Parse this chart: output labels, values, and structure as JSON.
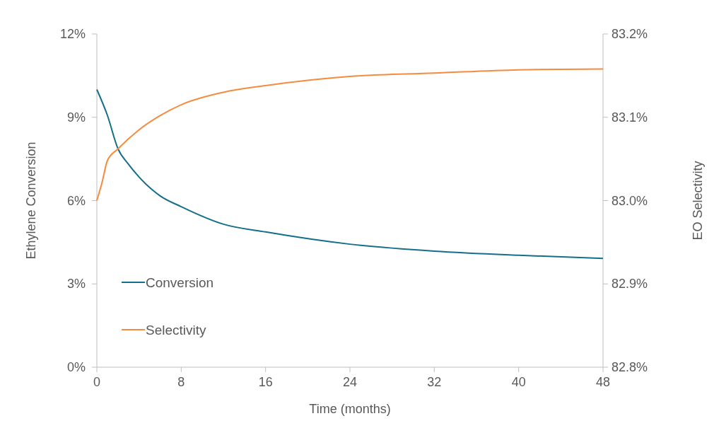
{
  "chart_data": {
    "type": "line",
    "xlabel": "Time  (months)",
    "ylabel": "Ethylene Conversion",
    "y2label": "EO Selectivity",
    "xlim": [
      0,
      48
    ],
    "xticks": [
      0,
      8,
      16,
      24,
      32,
      40,
      48
    ],
    "ylim": [
      0,
      12
    ],
    "yticks": [
      {
        "value": 0,
        "label": "0%"
      },
      {
        "value": 3,
        "label": "3%"
      },
      {
        "value": 6,
        "label": "6%"
      },
      {
        "value": 9,
        "label": "9%"
      },
      {
        "value": 12,
        "label": "12%"
      }
    ],
    "y2lim": [
      82.8,
      83.2
    ],
    "y2ticks": [
      {
        "value": 82.8,
        "label": "82.8%"
      },
      {
        "value": 82.9,
        "label": "82.9%"
      },
      {
        "value": 83.0,
        "label": "83.0%"
      },
      {
        "value": 83.1,
        "label": "83.1%"
      },
      {
        "value": 83.2,
        "label": "83.2%"
      }
    ],
    "legend": "bottom left",
    "grid": false,
    "marker": "none",
    "line_style": "solid",
    "series": [
      {
        "name": "Conversion",
        "color": "#146f8a",
        "x": [
          0,
          1,
          2,
          3,
          4,
          6,
          8,
          12,
          16,
          24,
          32,
          40,
          48
        ],
        "values": [
          10.0,
          9.07,
          7.87,
          7.31,
          6.85,
          6.17,
          5.78,
          5.15,
          4.87,
          4.43,
          4.18,
          4.03,
          3.92
        ]
      },
      {
        "name": "Selectivity",
        "color": "#f58b3c",
        "axis": "y2",
        "x": [
          0,
          0.5,
          1,
          2,
          4,
          6,
          8,
          12,
          16,
          24,
          32,
          40,
          48
        ],
        "values": [
          83.0,
          83.022,
          83.048,
          83.062,
          83.085,
          83.102,
          83.115,
          83.13,
          83.138,
          83.149,
          83.153,
          83.157,
          83.158
        ]
      }
    ]
  }
}
